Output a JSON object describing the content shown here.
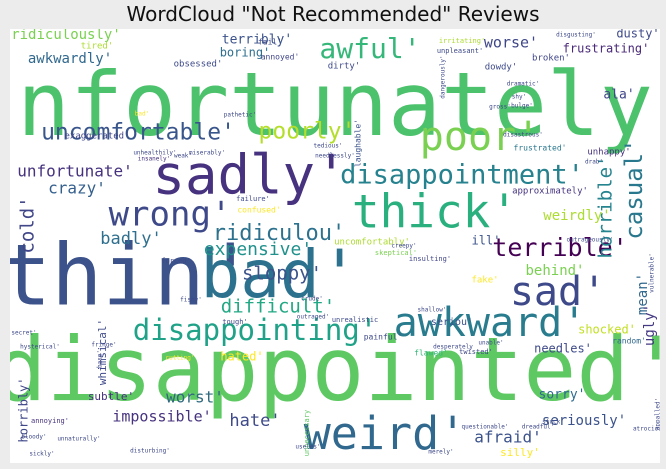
{
  "chart_data": {
    "type": "wordcloud",
    "title": "WordCloud \"Not Recommended\" Reviews",
    "colormap": "viridis",
    "background": "#ffffff",
    "words": [
      {
        "text": "unfortunately'",
        "color": "#4cc26c"
      },
      {
        "text": "disappointed'",
        "color": "#5ec962"
      },
      {
        "text": "thin'",
        "color": "#3b528b"
      },
      {
        "text": "bad'",
        "color": "#2c728e"
      },
      {
        "text": "sadly'",
        "color": "#46327e"
      },
      {
        "text": "weird'",
        "color": "#31688e"
      },
      {
        "text": "thick'",
        "color": "#2ab07f"
      },
      {
        "text": "awkward'",
        "color": "#287c8e"
      },
      {
        "text": "poor'",
        "color": "#7ad151"
      },
      {
        "text": "sad'",
        "color": "#3e4989"
      },
      {
        "text": "wrong'",
        "color": "#3e4989"
      },
      {
        "text": "disappointing'",
        "color": "#1fa287"
      },
      {
        "text": "disappointment'",
        "color": "#26828e"
      },
      {
        "text": "awful'",
        "color": "#35b779"
      },
      {
        "text": "uncomfortable'",
        "color": "#39568c"
      },
      {
        "text": "terrible'",
        "color": "#440154"
      },
      {
        "text": "poorly'",
        "color": "#b5de2b"
      },
      {
        "text": "casual'",
        "color": "#2a788e"
      },
      {
        "text": "ridiculou'",
        "color": "#2c728e"
      },
      {
        "text": "difficult'",
        "color": "#22a884"
      },
      {
        "text": "horrible'",
        "color": "#25848e"
      },
      {
        "text": "sloppy'",
        "color": "#3b528b"
      },
      {
        "text": "cold'",
        "color": "#404688"
      },
      {
        "text": "expensive'",
        "color": "#21918c"
      },
      {
        "text": "crazy'",
        "color": "#35608d"
      },
      {
        "text": "unfortunate'",
        "color": "#46327e"
      },
      {
        "text": "badly'",
        "color": "#2e6f8e"
      },
      {
        "text": "worse'",
        "color": "#3f4788"
      },
      {
        "text": "ridiculously'",
        "color": "#7ad151"
      },
      {
        "text": "awkwardly'",
        "color": "#31688e"
      },
      {
        "text": "terribly'",
        "color": "#3b528b"
      },
      {
        "text": "mean'",
        "color": "#31688e"
      },
      {
        "text": "weirdly'",
        "color": "#addc30"
      },
      {
        "text": "behind'",
        "color": "#7ad151"
      },
      {
        "text": "ugly'",
        "color": "#443983"
      },
      {
        "text": "worst'",
        "color": "#30697e"
      },
      {
        "text": "hate'",
        "color": "#3e4a89"
      },
      {
        "text": "afraid'",
        "color": "#3b528b"
      },
      {
        "text": "impossible'",
        "color": "#46327e"
      },
      {
        "text": "sorry'",
        "color": "#2f6b8e"
      },
      {
        "text": "seriously'",
        "color": "#3b528b"
      },
      {
        "text": "needles'",
        "color": "#3e4a89"
      },
      {
        "text": "shocked'",
        "color": "#c2df23"
      },
      {
        "text": "ala'",
        "color": "#404688"
      },
      {
        "text": "frustrating'",
        "color": "#482878"
      },
      {
        "text": "dusty'",
        "color": "#3e4989"
      },
      {
        "text": "boring'",
        "color": "#2e6e8e"
      },
      {
        "text": "hated'",
        "color": "#fde725"
      },
      {
        "text": "subtle'",
        "color": "#46337f"
      },
      {
        "text": "horribly'",
        "color": "#3f4788"
      },
      {
        "text": "silly'",
        "color": "#fde725"
      },
      {
        "text": "whimsical'",
        "color": "#3e4989"
      },
      {
        "text": "ill'",
        "color": "#3b528b"
      },
      {
        "text": "seriou'",
        "color": "#3b528b"
      },
      {
        "text": "exaggerated'",
        "color": "#404688"
      },
      {
        "text": "approximately'",
        "color": "#46337f"
      },
      {
        "text": "uncomfortably'",
        "color": "#addc30"
      },
      {
        "text": "tired'",
        "color": "#addc30"
      },
      {
        "text": "broken'",
        "color": "#404688"
      },
      {
        "text": "obsessed'",
        "color": "#3e4a89"
      },
      {
        "text": "annoyed'",
        "color": "#404688"
      },
      {
        "text": "dirty'",
        "color": "#3e4989"
      },
      {
        "text": "fail'",
        "color": "#3e4989"
      },
      {
        "text": "dowdy'",
        "color": "#3e4a89"
      },
      {
        "text": "confused'",
        "color": "#fde725"
      },
      {
        "text": "frustrated'",
        "color": "#2a788e"
      },
      {
        "text": "unhappy'",
        "color": "#46327e"
      },
      {
        "text": "flawed'",
        "color": "#35b779"
      },
      {
        "text": "painful'",
        "color": "#3e4989"
      },
      {
        "text": "fake'",
        "color": "#fde725"
      },
      {
        "text": "random'",
        "color": "#31688e"
      },
      {
        "text": "irritating'",
        "color": "#addc30"
      },
      {
        "text": "unpleasant'",
        "color": "#3e4989"
      },
      {
        "text": "laughable'",
        "color": "#3b528b"
      },
      {
        "text": "annoying'",
        "color": "#46327e"
      },
      {
        "text": "failure'",
        "color": "#3e4989"
      },
      {
        "text": "insanely'",
        "color": "#46327e"
      },
      {
        "text": "unrealistic",
        "color": "#3e4989"
      },
      {
        "text": "twisted'",
        "color": "#3e4989"
      },
      {
        "text": "unable'",
        "color": "#3e4989"
      },
      {
        "text": "tough'",
        "color": "#3e4989"
      },
      {
        "text": "skeptical'",
        "color": "#7ad151"
      },
      {
        "text": "insulting'",
        "color": "#404688"
      },
      {
        "text": "forced'",
        "color": "#3e4989"
      },
      {
        "text": "base'",
        "color": "#3e4989"
      },
      {
        "text": "unnecessary",
        "color": "#5ec962"
      },
      {
        "text": "cutting'",
        "color": "#fde725"
      },
      {
        "text": "appalled'",
        "color": "#3e4989"
      },
      {
        "text": "disgusting'",
        "color": "#3e4989"
      },
      {
        "text": "vulnerable'",
        "color": "#3e4989"
      },
      {
        "text": "atrocious'",
        "color": "#3e4989"
      },
      {
        "text": "bloody'",
        "color": "#3e4989"
      },
      {
        "text": "sickly'",
        "color": "#3e4989"
      },
      {
        "text": "disturbing'",
        "color": "#3e4989"
      },
      {
        "text": "useles'",
        "color": "#3e4989"
      },
      {
        "text": "merely'",
        "color": "#3e4989"
      },
      {
        "text": "questionable'",
        "color": "#3e4989"
      },
      {
        "text": "dreadful'",
        "color": "#3e4989"
      },
      {
        "text": "stuck'",
        "color": "#3e4989"
      },
      {
        "text": "desperately",
        "color": "#3e4989"
      },
      {
        "text": "drab'",
        "color": "#3e4989"
      },
      {
        "text": "dramatic'",
        "color": "#3e4989"
      },
      {
        "text": "shy'",
        "color": "#3e4989"
      },
      {
        "text": "bulge'",
        "color": "#3e4989"
      },
      {
        "text": "outrageously'",
        "color": "#3e4989"
      },
      {
        "text": "disastrous'",
        "color": "#3e4989"
      },
      {
        "text": "dangerously'",
        "color": "#3e4989"
      },
      {
        "text": "unhealthily'",
        "color": "#3e4989"
      },
      {
        "text": "weak'",
        "color": "#3e4989"
      },
      {
        "text": "miserably'",
        "color": "#3e4989"
      },
      {
        "text": "pathetic'",
        "color": "#3e4989"
      },
      {
        "text": "needlessly'",
        "color": "#3e4989"
      },
      {
        "text": "tedious'",
        "color": "#3e4989"
      },
      {
        "text": "shallow'",
        "color": "#3e4989"
      },
      {
        "text": "secret'",
        "color": "#3e4989"
      },
      {
        "text": "hysterical'",
        "color": "#3e4989"
      },
      {
        "text": "fringe'",
        "color": "#3e4989"
      },
      {
        "text": "unnaturally'",
        "color": "#3e4989"
      },
      {
        "text": "fishy'",
        "color": "#3e4989"
      },
      {
        "text": "gross'",
        "color": "#3e4989"
      },
      {
        "text": "crude'",
        "color": "#3e4989"
      },
      {
        "text": "outraged'",
        "color": "#3e4989"
      },
      {
        "text": "creepy'",
        "color": "#3e4989"
      },
      {
        "text": "bad'",
        "color": "#fde725"
      }
    ]
  }
}
